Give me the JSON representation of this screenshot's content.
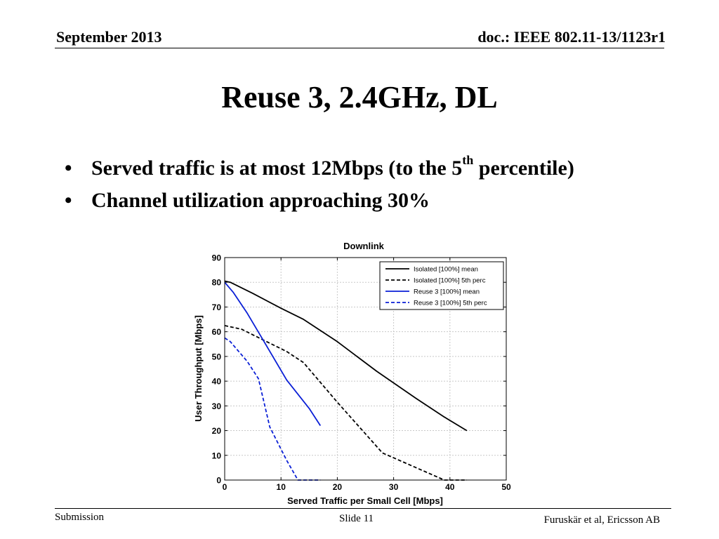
{
  "header": {
    "date": "September 2013",
    "doc": "doc.: IEEE 802.11-13/1123r1"
  },
  "slide": {
    "title": "Reuse 3, 2.4GHz, DL",
    "bullets": [
      {
        "text": "Served traffic is at most 12Mbps (to the 5",
        "sup": "th",
        "tail": " percentile)"
      },
      {
        "text": "Channel utilization approaching 30%",
        "sup": "",
        "tail": ""
      }
    ]
  },
  "footer": {
    "left": "Submission",
    "center": "Slide 11",
    "right": "Furuskär et al, Ericsson AB"
  },
  "chart_data": {
    "type": "line",
    "title": "Downlink",
    "xlabel": "Served Traffic per Small Cell [Mbps]",
    "ylabel": "User Throughput [Mbps]",
    "xlim": [
      0,
      50
    ],
    "ylim": [
      0,
      90
    ],
    "xticks": [
      0,
      10,
      20,
      30,
      40,
      50
    ],
    "yticks": [
      0,
      10,
      20,
      30,
      40,
      50,
      60,
      70,
      80,
      90
    ],
    "grid": true,
    "legend_position": "top-right",
    "series": [
      {
        "name": "Isolated [100%] mean",
        "color": "#000000",
        "dashed": false,
        "x": [
          0,
          1,
          5,
          10,
          14,
          20,
          27,
          34,
          39,
          43
        ],
        "y": [
          80.5,
          80,
          75.5,
          69.5,
          65,
          56,
          44,
          33,
          25.5,
          20
        ]
      },
      {
        "name": "Isolated [100%] 5th perc",
        "color": "#000000",
        "dashed": true,
        "x": [
          0,
          3,
          7,
          11,
          14,
          20,
          28,
          33,
          39,
          43
        ],
        "y": [
          62.5,
          61,
          56.5,
          52,
          47.5,
          31.5,
          11,
          6,
          0,
          0
        ]
      },
      {
        "name": "Reuse 3 [100%] mean",
        "color": "#0a1fd6",
        "dashed": false,
        "x": [
          0,
          1.5,
          4,
          7,
          11,
          15,
          17
        ],
        "y": [
          80,
          76,
          67.5,
          56,
          40.5,
          29,
          22
        ]
      },
      {
        "name": "Reuse 3 [100%] 5th perc",
        "color": "#0a1fd6",
        "dashed": true,
        "x": [
          0,
          1,
          4,
          6,
          8,
          11,
          13,
          17
        ],
        "y": [
          57.5,
          56,
          48,
          41,
          21.5,
          8,
          0,
          0
        ]
      }
    ]
  }
}
